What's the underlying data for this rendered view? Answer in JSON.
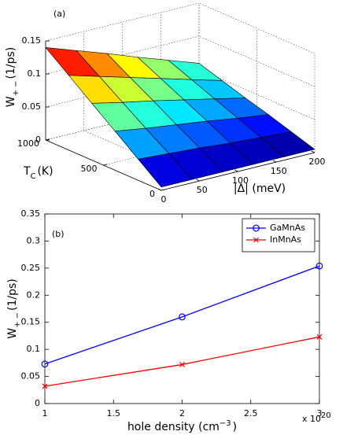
{
  "chart_data": [
    {
      "type": "surface",
      "panel_label": "(a)",
      "x": [
        0,
        40,
        80,
        120,
        160,
        200
      ],
      "y": [
        0,
        200,
        400,
        600,
        800,
        1000
      ],
      "z": [
        [
          0.005,
          0.005,
          0.005,
          0.005,
          0.005,
          0.005
        ],
        [
          0.032,
          0.029,
          0.026,
          0.022,
          0.019,
          0.016
        ],
        [
          0.059,
          0.052,
          0.046,
          0.04,
          0.033,
          0.027
        ],
        [
          0.086,
          0.076,
          0.067,
          0.057,
          0.047,
          0.037
        ],
        [
          0.113,
          0.1,
          0.087,
          0.074,
          0.061,
          0.048
        ],
        [
          0.14,
          0.124,
          0.108,
          0.091,
          0.075,
          0.059
        ]
      ],
      "xlim": [
        0,
        200
      ],
      "ylim": [
        0,
        1000
      ],
      "zlim": [
        0,
        0.15
      ],
      "xticks": [
        0,
        50,
        100,
        150,
        200
      ],
      "yticks": [
        0,
        500,
        1000
      ],
      "zticks": [
        0,
        0.05,
        0.1,
        0.15
      ],
      "xlabel": "|Δ| (meV)",
      "ylabel": {
        "main": "T",
        "sub": "C",
        "unit": "(K)"
      },
      "zlabel": {
        "main": "W",
        "sub": "+ −",
        "unit": "(1/ps)"
      },
      "colormap": "jet",
      "grid": true
    },
    {
      "type": "line",
      "panel_label": "(b)",
      "x": [
        1,
        2,
        3
      ],
      "series": [
        {
          "name": "GaMnAs",
          "color": "#0000ff",
          "marker": "o",
          "values": [
            0.073,
            0.16,
            0.254
          ]
        },
        {
          "name": "InMnAs",
          "color": "#ff0000",
          "marker": "x",
          "values": [
            0.032,
            0.072,
            0.123
          ]
        }
      ],
      "xlim": [
        1,
        3
      ],
      "ylim": [
        0,
        0.35
      ],
      "xticks": [
        1,
        1.5,
        2,
        2.5,
        3
      ],
      "yticks": [
        0,
        0.05,
        0.1,
        0.15,
        0.2,
        0.25,
        0.3,
        0.35
      ],
      "x_multiplier": {
        "base": "x 10",
        "exp": "20"
      },
      "xlabel": {
        "main": "hole density (cm",
        "sup": "−3",
        "end": ")"
      },
      "ylabel": {
        "main": "W",
        "sub": "+ −",
        "unit": "(1/ps)"
      },
      "legend": "northeast"
    }
  ]
}
